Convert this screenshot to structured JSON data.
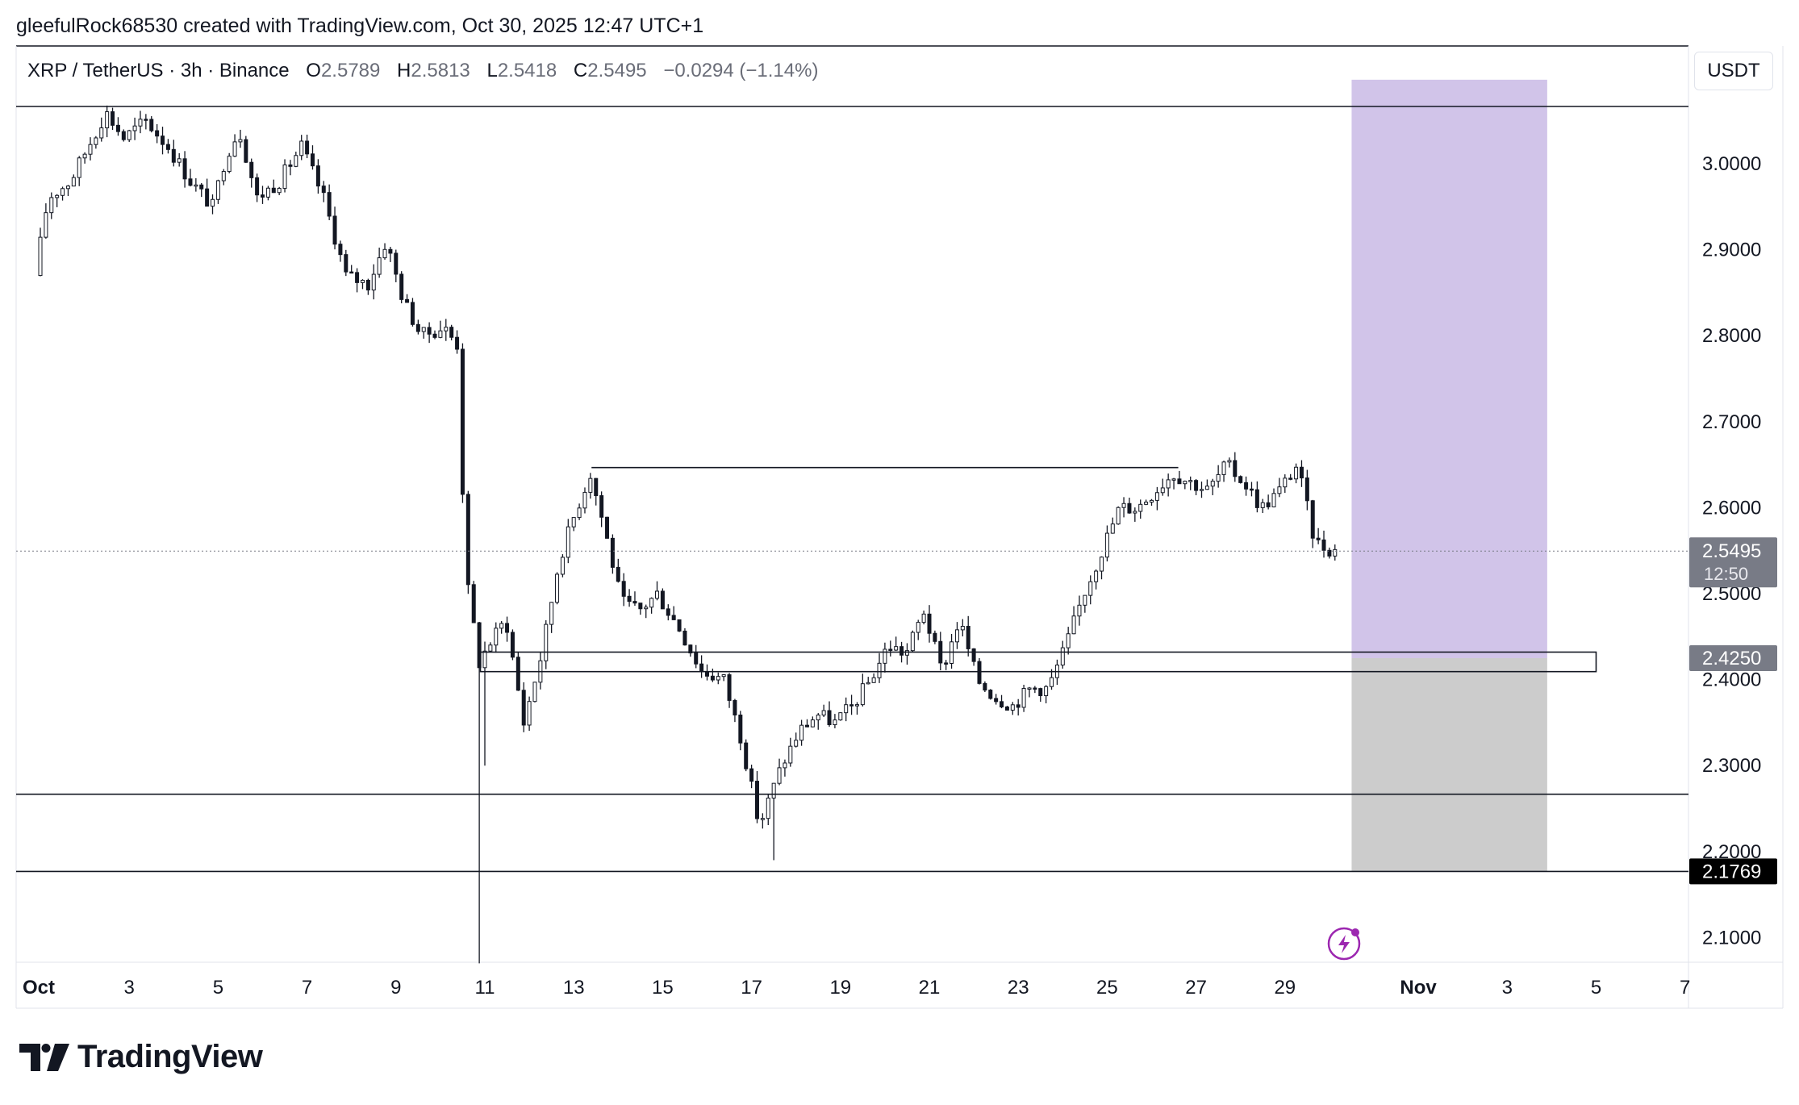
{
  "header": {
    "credit": "gleefulRock68530 created with TradingView.com, Oct 30, 2025 12:47 UTC+1"
  },
  "legend": {
    "symbol": "XRP / TetherUS · 3h · Binance",
    "open_label": "O",
    "open": "2.5789",
    "high_label": "H",
    "high": "2.5813",
    "low_label": "L",
    "low": "2.5418",
    "close_label": "C",
    "close": "2.5495",
    "change": "−0.0294 (−1.14%)"
  },
  "currency_button": "USDT",
  "brand": {
    "name": "TradingView"
  },
  "colors": {
    "position_target": "#d1c4e9",
    "position_stop": "#cccccc",
    "price_label": "#787b86",
    "level_label": "#000000",
    "candle_body_up": "#ffffff",
    "candle_border": "#131722"
  },
  "chart_data": {
    "type": "candlestick",
    "symbol": "XRP / TetherUS",
    "interval": "3h",
    "exchange": "Binance",
    "ylim": [
      2.07,
      3.13
    ],
    "y_ticks": [
      "3.0000",
      "2.9000",
      "2.8000",
      "2.7000",
      "2.6000",
      "2.5000",
      "2.4000",
      "2.3000",
      "2.2000",
      "2.1000"
    ],
    "x_ticks": [
      {
        "label": "Oct",
        "day": 1,
        "bold": true
      },
      {
        "label": "3",
        "day": 3
      },
      {
        "label": "5",
        "day": 5
      },
      {
        "label": "7",
        "day": 7
      },
      {
        "label": "9",
        "day": 9
      },
      {
        "label": "11",
        "day": 11
      },
      {
        "label": "13",
        "day": 13
      },
      {
        "label": "15",
        "day": 15
      },
      {
        "label": "17",
        "day": 17
      },
      {
        "label": "19",
        "day": 19
      },
      {
        "label": "21",
        "day": 21
      },
      {
        "label": "23",
        "day": 23
      },
      {
        "label": "25",
        "day": 25
      },
      {
        "label": "27",
        "day": 27
      },
      {
        "label": "29",
        "day": 29
      },
      {
        "label": "Nov",
        "day": 32,
        "bold": true
      },
      {
        "label": "3",
        "day": 34
      },
      {
        "label": "5",
        "day": 36
      },
      {
        "label": "7",
        "day": 38
      }
    ],
    "price_path": [
      [
        0.0,
        2.85
      ],
      [
        0.5,
        2.86
      ],
      [
        0.9,
        2.84
      ],
      [
        1.3,
        2.96
      ],
      [
        1.8,
        2.98
      ],
      [
        2.2,
        3.02
      ],
      [
        2.6,
        3.06
      ],
      [
        3.0,
        3.03
      ],
      [
        3.5,
        3.05
      ],
      [
        4.0,
        3.02
      ],
      [
        4.5,
        2.98
      ],
      [
        5.0,
        2.95
      ],
      [
        5.3,
        3.01
      ],
      [
        5.6,
        3.04
      ],
      [
        6.0,
        2.96
      ],
      [
        6.5,
        2.98
      ],
      [
        7.0,
        3.02
      ],
      [
        7.5,
        2.96
      ],
      [
        8.0,
        2.87
      ],
      [
        8.5,
        2.86
      ],
      [
        8.9,
        2.91
      ],
      [
        9.3,
        2.84
      ],
      [
        9.7,
        2.8
      ],
      [
        10.2,
        2.81
      ],
      [
        10.5,
        2.79
      ],
      [
        10.7,
        2.52
      ],
      [
        11.0,
        2.42
      ],
      [
        11.2,
        2.44
      ],
      [
        11.6,
        2.47
      ],
      [
        12.0,
        2.35
      ],
      [
        12.4,
        2.43
      ],
      [
        12.8,
        2.54
      ],
      [
        13.2,
        2.6
      ],
      [
        13.5,
        2.64
      ],
      [
        13.8,
        2.58
      ],
      [
        14.2,
        2.49
      ],
      [
        14.6,
        2.48
      ],
      [
        15.0,
        2.5
      ],
      [
        15.5,
        2.46
      ],
      [
        16.0,
        2.41
      ],
      [
        16.5,
        2.4
      ],
      [
        16.9,
        2.33
      ],
      [
        17.3,
        2.23
      ],
      [
        17.8,
        2.3
      ],
      [
        18.2,
        2.34
      ],
      [
        18.6,
        2.36
      ],
      [
        19.0,
        2.35
      ],
      [
        19.4,
        2.37
      ],
      [
        19.8,
        2.4
      ],
      [
        20.2,
        2.44
      ],
      [
        20.6,
        2.43
      ],
      [
        21.0,
        2.48
      ],
      [
        21.4,
        2.41
      ],
      [
        21.8,
        2.47
      ],
      [
        22.2,
        2.4
      ],
      [
        22.6,
        2.38
      ],
      [
        23.0,
        2.37
      ],
      [
        23.4,
        2.39
      ],
      [
        23.8,
        2.39
      ],
      [
        24.2,
        2.44
      ],
      [
        24.6,
        2.5
      ],
      [
        25.0,
        2.55
      ],
      [
        25.4,
        2.6
      ],
      [
        25.8,
        2.6
      ],
      [
        26.2,
        2.62
      ],
      [
        26.6,
        2.64
      ],
      [
        27.0,
        2.63
      ],
      [
        27.4,
        2.62
      ],
      [
        27.8,
        2.65
      ],
      [
        28.2,
        2.63
      ],
      [
        28.6,
        2.6
      ],
      [
        29.0,
        2.62
      ],
      [
        29.4,
        2.65
      ],
      [
        29.8,
        2.56
      ],
      [
        30.2,
        2.55
      ]
    ],
    "current_price": {
      "value": 2.5495,
      "label": "2.5495",
      "countdown": "12:50"
    },
    "levels": [
      {
        "name": "resistance-high",
        "value": 3.0666
      },
      {
        "name": "support-1",
        "value": 2.2667
      },
      {
        "name": "support-2",
        "value": 2.1769,
        "label": "2.1769"
      }
    ],
    "segments": [
      {
        "name": "range-high-line",
        "day_start": 13.4,
        "day_end": 26.6,
        "value": 2.6466
      }
    ],
    "zone": {
      "name": "entry-zone",
      "day_start": 10.9,
      "day_end": 36.0,
      "top": 2.432,
      "bottom": 2.4093
    },
    "position": {
      "type": "long",
      "day_start": 30.5,
      "day_end": 34.9,
      "entry": 2.425,
      "entry_label": "2.4250",
      "target": 3.0977,
      "stop": 2.1769
    }
  }
}
